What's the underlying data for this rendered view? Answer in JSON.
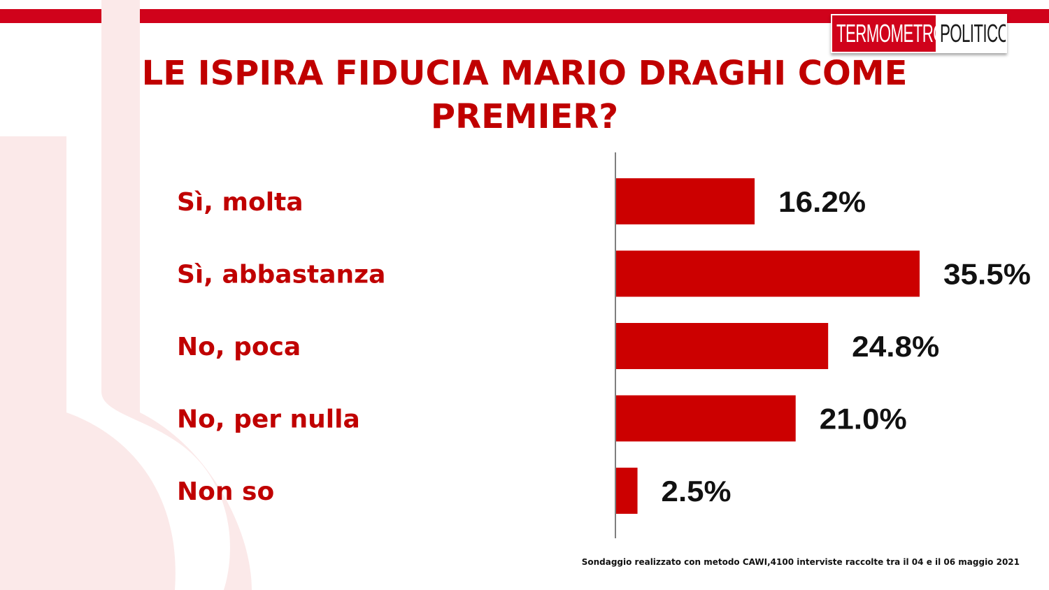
{
  "brand": {
    "part1": "TERMOMETRO",
    "part2": "POLITICO",
    "accent": "#d0021b"
  },
  "title": "LE ISPIRA FIDUCIA MARIO DRAGHI COME PREMIER?",
  "chart_data": {
    "type": "bar",
    "orientation": "horizontal",
    "categories": [
      "Sì, molta",
      "Sì, abbastanza",
      "No, poca",
      "No, per nulla",
      "Non so"
    ],
    "values": [
      16.2,
      35.5,
      24.8,
      21.0,
      2.5
    ],
    "value_labels": [
      "16.2%",
      "35.5%",
      "24.8%",
      "21.0%",
      "2.5%"
    ],
    "unit": "%",
    "xlim": [
      0,
      35.5
    ],
    "bar_color": "#cc0000",
    "grid": false
  },
  "footnote": "Sondaggio realizzato con metodo CAWI,4100 interviste raccolte tra il 04 e il 06 maggio 2021"
}
